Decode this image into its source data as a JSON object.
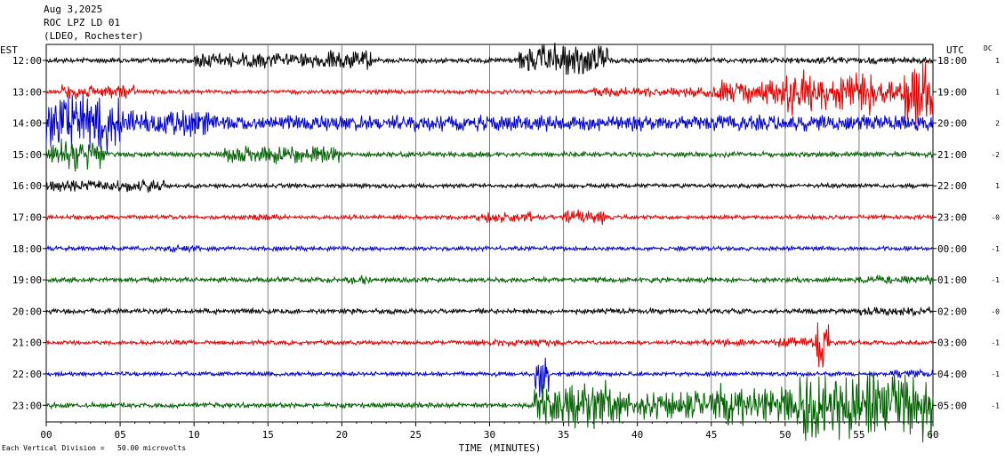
{
  "header": {
    "date": "Aug 3,2025",
    "station": "ROC LPZ LD 01",
    "network": "(LDEO, Rochester)"
  },
  "footer": {
    "scale_note": "Each Vertical Division =   50.00 microvolts"
  },
  "chart_data": {
    "type": "line",
    "title": "",
    "xlabel": "TIME (MINUTES)",
    "xlim": [
      0,
      60
    ],
    "x_ticks": [
      0,
      5,
      10,
      15,
      20,
      25,
      30,
      35,
      40,
      45,
      50,
      55,
      60
    ],
    "x_tick_labels": [
      "00",
      "05",
      "10",
      "15",
      "20",
      "25",
      "30",
      "35",
      "40",
      "45",
      "50",
      "55",
      "60"
    ],
    "left_axis_label": "EST",
    "right_axis_label": "UTC",
    "dc_label": "DC",
    "grid": "vertical lines every 5 minutes",
    "colors": [
      "#000000",
      "#e00000",
      "#0000cc",
      "#006000"
    ],
    "rows": [
      {
        "est": "12:00",
        "utc": "18:00",
        "dc": "1",
        "color": "#000000",
        "base": 3,
        "events": [
          [
            10,
            21,
            9
          ],
          [
            19,
            22,
            12
          ],
          [
            32,
            38,
            18
          ],
          [
            50,
            60,
            4
          ]
        ]
      },
      {
        "est": "13:00",
        "utc": "19:00",
        "dc": "1",
        "color": "#e00000",
        "base": 2.5,
        "events": [
          [
            1,
            6,
            8
          ],
          [
            37,
            45,
            6
          ],
          [
            45,
            50,
            14
          ],
          [
            50,
            56,
            26
          ],
          [
            56,
            58,
            12
          ],
          [
            58,
            60,
            40
          ]
        ]
      },
      {
        "est": "14:00",
        "utc": "20:00",
        "dc": "2",
        "color": "#0000cc",
        "base": 5,
        "events": [
          [
            0,
            5,
            38
          ],
          [
            5,
            11,
            16
          ],
          [
            11,
            60,
            9
          ]
        ]
      },
      {
        "est": "15:00",
        "utc": "21:00",
        "dc": "-2",
        "color": "#006000",
        "base": 3,
        "events": [
          [
            0,
            1,
            12
          ],
          [
            1,
            4,
            18
          ],
          [
            12,
            14,
            10
          ],
          [
            14,
            20,
            10
          ]
        ]
      },
      {
        "est": "16:00",
        "utc": "22:00",
        "dc": "1",
        "color": "#000000",
        "base": 2.5,
        "events": [
          [
            0,
            8,
            7
          ]
        ]
      },
      {
        "est": "17:00",
        "utc": "23:00",
        "dc": "-0",
        "color": "#e00000",
        "base": 2.5,
        "events": [
          [
            13,
            16,
            4
          ],
          [
            29,
            33,
            6
          ],
          [
            35,
            38,
            8
          ]
        ]
      },
      {
        "est": "18:00",
        "utc": "00:00",
        "dc": "-1",
        "color": "#0000cc",
        "base": 2.5,
        "events": [
          [
            8,
            11,
            4
          ]
        ]
      },
      {
        "est": "19:00",
        "utc": "01:00",
        "dc": "-1",
        "color": "#006000",
        "base": 3,
        "events": [
          [
            20,
            22,
            5
          ],
          [
            55,
            60,
            5
          ]
        ]
      },
      {
        "est": "20:00",
        "utc": "02:00",
        "dc": "-0",
        "color": "#000000",
        "base": 3,
        "events": [
          [
            55,
            60,
            5
          ]
        ]
      },
      {
        "est": "21:00",
        "utc": "03:00",
        "dc": "-1",
        "color": "#e00000",
        "base": 2.5,
        "events": [
          [
            29,
            35,
            4
          ],
          [
            44,
            48,
            4
          ],
          [
            49,
            53,
            6
          ],
          [
            52,
            53,
            34
          ]
        ]
      },
      {
        "est": "22:00",
        "utc": "04:00",
        "dc": "-1",
        "color": "#0000cc",
        "base": 2.5,
        "events": [
          [
            33,
            34,
            28
          ],
          [
            57,
            60,
            5
          ]
        ]
      },
      {
        "est": "23:00",
        "utc": "05:00",
        "dc": "-1",
        "color": "#006000",
        "base": 3,
        "events": [
          [
            33,
            39,
            26
          ],
          [
            39,
            45,
            16
          ],
          [
            45,
            51,
            24
          ],
          [
            51,
            56,
            42
          ],
          [
            56,
            60,
            38
          ]
        ]
      }
    ]
  }
}
